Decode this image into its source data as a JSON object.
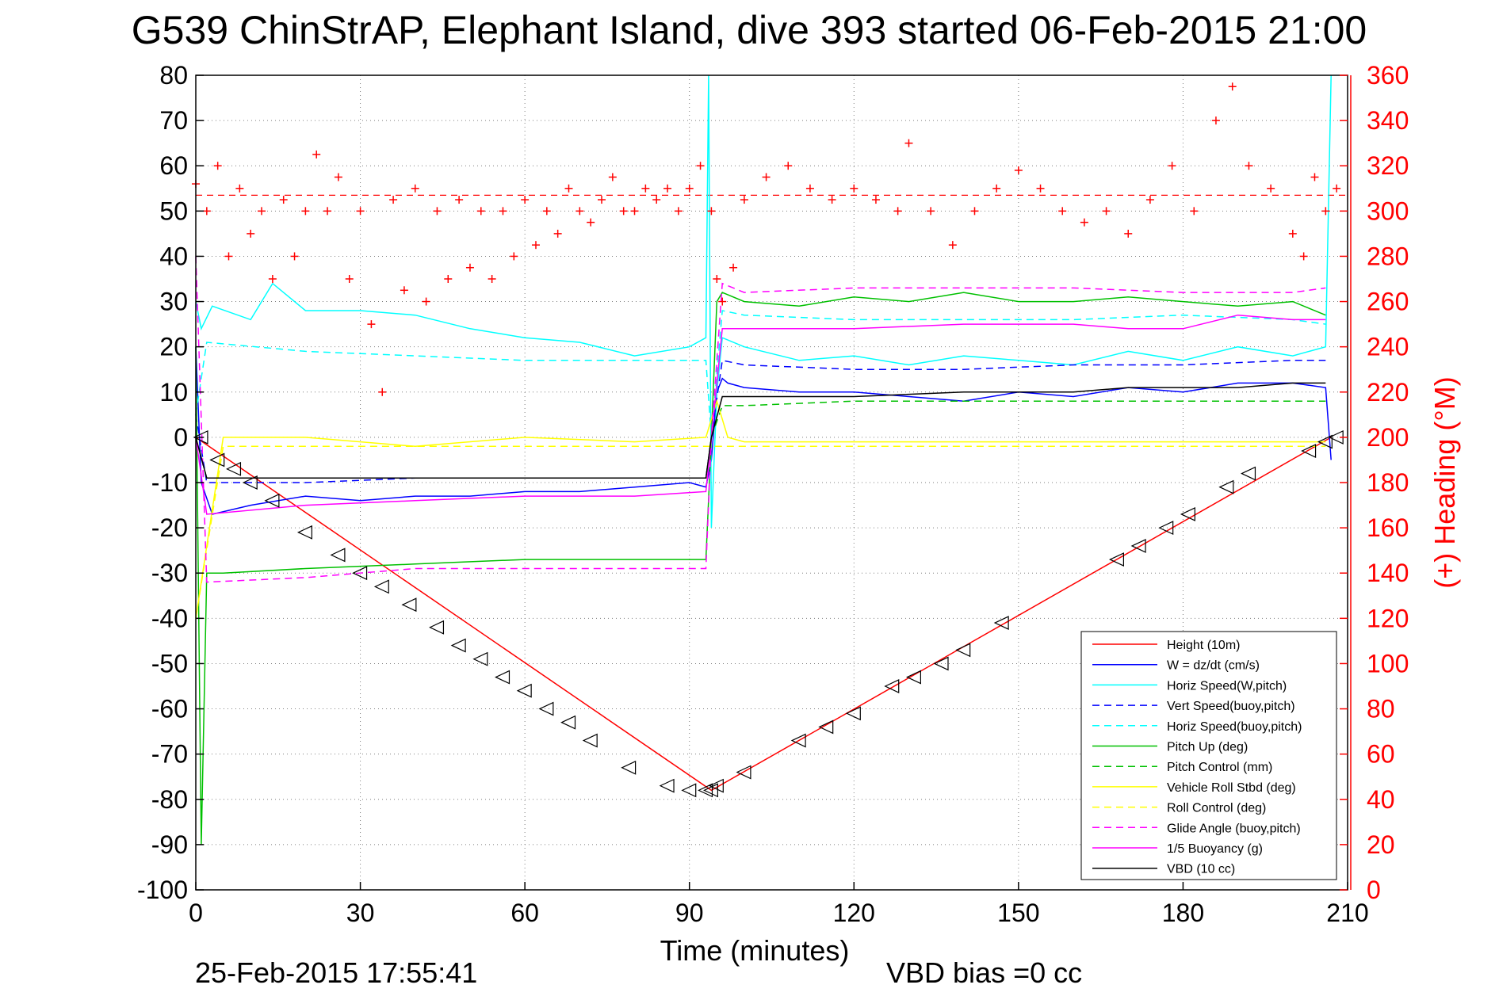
{
  "chart_data": {
    "type": "line",
    "title": "G539 ChinStrAP, Elephant Island, dive 393 started 06-Feb-2015 21:00",
    "xlabel": "Time (minutes)",
    "ylabel": "",
    "y2label": "(+) Heading (°M)",
    "xlim": [
      0,
      210
    ],
    "ylim": [
      -100,
      80
    ],
    "y2lim": [
      0,
      360
    ],
    "xticks": [
      "0",
      "30",
      "60",
      "90",
      "120",
      "150",
      "180",
      "210"
    ],
    "yticks": [
      "80",
      "70",
      "60",
      "50",
      "40",
      "30",
      "20",
      "10",
      "0",
      "-10",
      "-20",
      "-30",
      "-40",
      "-50",
      "-60",
      "-70",
      "-80",
      "-90",
      "-100"
    ],
    "y2ticks": [
      "360",
      "340",
      "320",
      "300",
      "280",
      "260",
      "240",
      "220",
      "200",
      "180",
      "160",
      "140",
      "120",
      "100",
      "80",
      "60",
      "40",
      "20",
      "0"
    ],
    "grid": true,
    "legend_position": "bottom-right",
    "heading_reference": 53.5,
    "series": [
      {
        "name": "Height (10m)",
        "color": "#ff0000",
        "style": "solid",
        "x": [
          0,
          94,
          207
        ],
        "y": [
          0,
          -78,
          0
        ]
      },
      {
        "name": "W = dz/dt (cm/s)",
        "color": "#0000ff",
        "style": "solid",
        "x": [
          0,
          1,
          3,
          10,
          20,
          30,
          40,
          50,
          60,
          70,
          80,
          90,
          93,
          94,
          95,
          96,
          97,
          100,
          110,
          120,
          130,
          140,
          150,
          160,
          170,
          180,
          190,
          200,
          206,
          207
        ],
        "y": [
          20,
          -10,
          -17,
          -15,
          -13,
          -14,
          -13,
          -13,
          -12,
          -12,
          -11,
          -10,
          -11,
          -5,
          10,
          13,
          12,
          11,
          10,
          10,
          9,
          8,
          10,
          9,
          11,
          10,
          12,
          12,
          11,
          -5
        ]
      },
      {
        "name": "Horiz Speed(W,pitch)",
        "color": "#00ffff",
        "style": "solid",
        "x": [
          0,
          1,
          3,
          10,
          14,
          20,
          30,
          40,
          50,
          60,
          70,
          80,
          90,
          93,
          93.5,
          94,
          95,
          96,
          100,
          110,
          120,
          130,
          140,
          150,
          160,
          170,
          180,
          190,
          200,
          206,
          207
        ],
        "y": [
          30,
          24,
          29,
          26,
          34,
          28,
          28,
          27,
          24,
          22,
          21,
          18,
          20,
          22,
          80,
          -20,
          10,
          22,
          20,
          17,
          18,
          16,
          18,
          17,
          16,
          19,
          17,
          20,
          18,
          20,
          80
        ]
      },
      {
        "name": "Vert Speed(buoy,pitch)",
        "color": "#0000ff",
        "style": "dashed",
        "x": [
          0,
          2,
          20,
          40,
          60,
          80,
          93,
          94,
          96,
          100,
          120,
          140,
          160,
          180,
          200,
          206
        ],
        "y": [
          5,
          -10,
          -10,
          -9,
          -9,
          -9,
          -9,
          0,
          17,
          16,
          15,
          15,
          16,
          16,
          17,
          17
        ]
      },
      {
        "name": "Horiz Speed(buoy,pitch)",
        "color": "#00ffff",
        "style": "dashed",
        "x": [
          0,
          2,
          20,
          40,
          60,
          80,
          93,
          94,
          96,
          100,
          120,
          140,
          160,
          180,
          200,
          206
        ],
        "y": [
          5,
          21,
          19,
          18,
          17,
          17,
          17,
          0,
          28,
          27,
          26,
          26,
          26,
          27,
          26,
          25
        ]
      },
      {
        "name": "Pitch Up (deg)",
        "color": "#00c000",
        "style": "solid",
        "x": [
          0,
          1,
          2,
          5,
          20,
          40,
          60,
          80,
          90,
          93,
          94,
          95,
          96,
          100,
          110,
          120,
          130,
          140,
          150,
          160,
          170,
          180,
          190,
          200,
          206
        ],
        "y": [
          20,
          -90,
          -30,
          -30,
          -29,
          -28,
          -27,
          -27,
          -27,
          -27,
          0,
          30,
          32,
          30,
          29,
          31,
          30,
          32,
          30,
          30,
          31,
          30,
          29,
          30,
          27
        ]
      },
      {
        "name": "Pitch Control (mm)",
        "color": "#00c000",
        "style": "dashed",
        "x": [
          0,
          2,
          20,
          40,
          60,
          80,
          93,
          94,
          96,
          100,
          120,
          140,
          160,
          180,
          200,
          206
        ],
        "y": [
          0,
          -9,
          -9,
          -9,
          -9,
          -9,
          -9,
          0,
          7,
          7,
          8,
          8,
          8,
          8,
          8,
          8
        ]
      },
      {
        "name": "Vehicle Roll Stbd (deg)",
        "color": "#ffff00",
        "style": "solid",
        "x": [
          0,
          5,
          20,
          40,
          60,
          80,
          93,
          95,
          97,
          100,
          120,
          140,
          160,
          180,
          200,
          206
        ],
        "y": [
          -40,
          0,
          0,
          -2,
          0,
          -1,
          0,
          8,
          0,
          -1,
          -1,
          -1,
          -1,
          -1,
          -1,
          -1
        ]
      },
      {
        "name": "Roll Control (deg)",
        "color": "#ffff00",
        "style": "dashed",
        "x": [
          0,
          5,
          20,
          40,
          60,
          80,
          93,
          95,
          100,
          120,
          140,
          160,
          180,
          200,
          206
        ],
        "y": [
          -40,
          -2,
          -2,
          -2,
          -2,
          -2,
          -2,
          -2,
          -2,
          -2,
          -2,
          -2,
          -2,
          -2,
          -2
        ]
      },
      {
        "name": "Glide Angle (buoy,pitch)",
        "color": "#ff00ff",
        "style": "dashed",
        "x": [
          0,
          2,
          20,
          40,
          60,
          80,
          93,
          94,
          96,
          100,
          120,
          140,
          160,
          180,
          200,
          206
        ],
        "y": [
          40,
          -32,
          -31,
          -29,
          -29,
          -29,
          -29,
          0,
          34,
          32,
          33,
          33,
          33,
          32,
          32,
          33
        ]
      },
      {
        "name": "1/5 Buoyancy (g)",
        "color": "#ff00ff",
        "style": "solid",
        "x": [
          0,
          2,
          20,
          40,
          60,
          80,
          93,
          94,
          96,
          100,
          120,
          140,
          160,
          170,
          180,
          190,
          200,
          206
        ],
        "y": [
          0,
          -17,
          -15,
          -14,
          -13,
          -13,
          -12,
          0,
          24,
          24,
          24,
          25,
          25,
          24,
          24,
          27,
          26,
          26
        ]
      },
      {
        "name": "VBD (10 cc)",
        "color": "#000000",
        "style": "solid",
        "x": [
          0,
          2,
          20,
          40,
          60,
          80,
          93,
          94,
          96,
          100,
          120,
          140,
          160,
          170,
          180,
          190,
          200,
          206
        ],
        "y": [
          0,
          -9,
          -9,
          -9,
          -9,
          -9,
          -9,
          0,
          9,
          9,
          9,
          10,
          10,
          11,
          11,
          11,
          12,
          12
        ]
      }
    ],
    "heading": {
      "x": [
        0,
        2,
        4,
        6,
        8,
        10,
        12,
        14,
        16,
        18,
        20,
        22,
        24,
        26,
        28,
        30,
        32,
        34,
        36,
        38,
        40,
        42,
        44,
        46,
        48,
        50,
        52,
        54,
        56,
        58,
        60,
        62,
        64,
        66,
        68,
        70,
        72,
        74,
        76,
        78,
        80,
        82,
        84,
        86,
        88,
        90,
        92,
        94,
        95,
        96,
        98,
        100,
        104,
        108,
        112,
        116,
        120,
        124,
        128,
        130,
        134,
        138,
        142,
        146,
        150,
        154,
        158,
        162,
        166,
        170,
        174,
        178,
        182,
        186,
        189,
        192,
        196,
        200,
        202,
        204,
        206,
        208
      ],
      "y": [
        312,
        300,
        320,
        280,
        310,
        290,
        300,
        270,
        305,
        280,
        300,
        325,
        300,
        315,
        270,
        300,
        250,
        220,
        305,
        265,
        310,
        260,
        300,
        270,
        305,
        275,
        300,
        270,
        300,
        280,
        305,
        285,
        300,
        290,
        310,
        300,
        295,
        305,
        315,
        300,
        300,
        310,
        305,
        310,
        300,
        310,
        320,
        300,
        270,
        260,
        275,
        305,
        315,
        320,
        310,
        305,
        310,
        305,
        300,
        330,
        300,
        285,
        300,
        310,
        318,
        310,
        300,
        295,
        300,
        290,
        305,
        320,
        300,
        340,
        355,
        320,
        310,
        290,
        280,
        315,
        300,
        310
      ]
    },
    "markers": {
      "symbol": "triangle",
      "x": [
        1,
        4,
        7,
        10,
        14,
        20,
        26,
        30,
        34,
        39,
        44,
        48,
        52,
        56,
        60,
        64,
        68,
        72,
        79,
        86,
        90,
        93,
        94,
        95,
        100,
        110,
        115,
        120,
        127,
        131,
        136,
        140,
        147,
        168,
        172,
        177,
        181,
        188,
        192,
        203,
        206,
        208
      ],
      "y": [
        0,
        -5,
        -7,
        -10,
        -14,
        -21,
        -26,
        -30,
        -33,
        -37,
        -42,
        -46,
        -49,
        -53,
        -56,
        -60,
        -63,
        -67,
        -73,
        -77,
        -78,
        -78,
        -78,
        -77,
        -74,
        -67,
        -64,
        -61,
        -55,
        -53,
        -50,
        -47,
        -41,
        -27,
        -24,
        -20,
        -17,
        -11,
        -8,
        -3,
        -1,
        0
      ]
    },
    "footer_left": "25-Feb-2015 17:55:41",
    "footer_right": "VBD bias =0 cc"
  }
}
